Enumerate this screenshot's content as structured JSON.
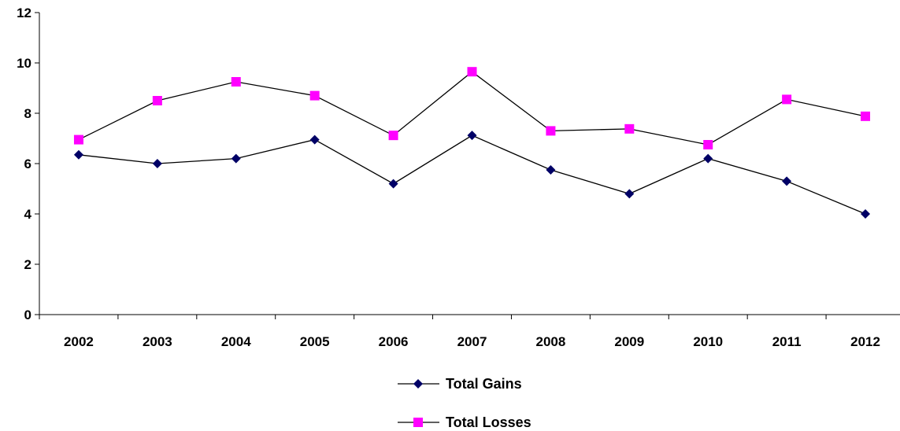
{
  "chart_data": {
    "type": "line",
    "categories": [
      "2002",
      "2003",
      "2004",
      "2005",
      "2006",
      "2007",
      "2008",
      "2009",
      "2010",
      "2011",
      "2012"
    ],
    "ylim": [
      0,
      12
    ],
    "yticks": [
      "0",
      "2",
      "4",
      "6",
      "8",
      "10",
      "12"
    ],
    "grid": false,
    "legend_position": "bottom",
    "series": [
      {
        "name": "Total Gains",
        "values": [
          6.35,
          6.0,
          6.2,
          6.95,
          5.2,
          7.12,
          5.75,
          4.8,
          6.2,
          5.3,
          4.0
        ],
        "marker": "diamond",
        "color": "#000066"
      },
      {
        "name": "Total Losses",
        "values": [
          6.95,
          8.5,
          9.25,
          8.7,
          7.12,
          9.65,
          7.3,
          7.38,
          6.75,
          8.55,
          7.88
        ],
        "marker": "square",
        "color": "#ff00ff"
      }
    ],
    "line_color": "#000000"
  }
}
